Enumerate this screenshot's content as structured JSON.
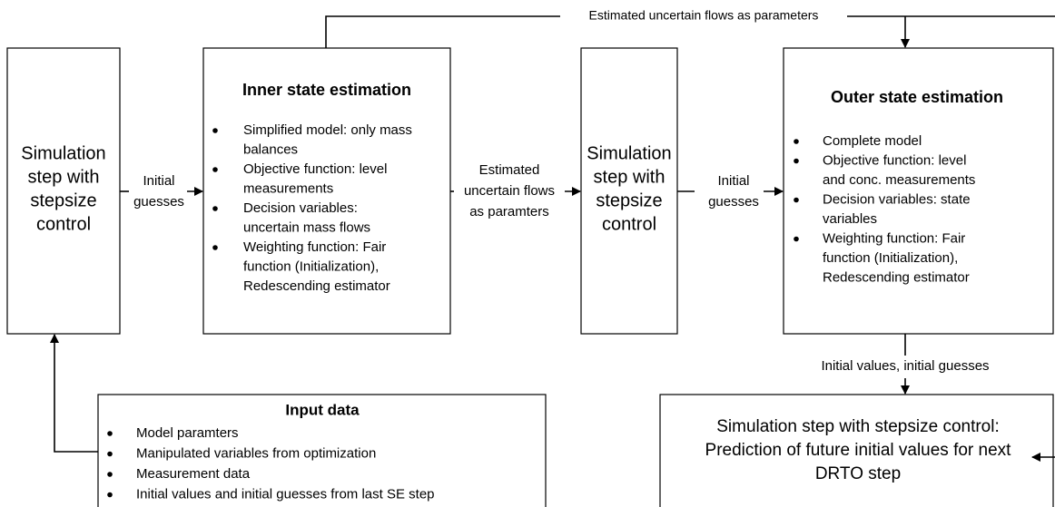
{
  "top_edge_label": "Estimated uncertain flows as parameters",
  "nodes": [
    {
      "lines": [
        "Simulation",
        "step with",
        "stepsize",
        "control"
      ]
    },
    {
      "title": "Inner state estimation",
      "bullets": [
        [
          "Simplified model: only mass",
          "balances"
        ],
        [
          "Objective function: level",
          "measurements"
        ],
        [
          "Decision variables:",
          "uncertain mass flows"
        ],
        [
          "Weighting function: Fair",
          "function (Initialization),",
          "Redescending estimator"
        ]
      ]
    },
    {
      "lines": [
        "Simulation",
        "step with",
        "stepsize",
        "control"
      ]
    },
    {
      "title": "Outer state estimation",
      "bullets": [
        [
          "Complete model"
        ],
        [
          "Objective function: level",
          "and conc. measurements"
        ],
        [
          "Decision variables: state",
          "variables"
        ],
        [
          "Weighting function: Fair",
          "function (Initialization),",
          "Redescending estimator"
        ]
      ]
    },
    {
      "lines": [
        "Simulation step with stepsize control:",
        "Prediction of future initial values for next",
        "DRTO step"
      ]
    },
    {
      "title": "Input data",
      "bullets": [
        [
          "Model paramters"
        ],
        [
          "Manipulated variables from optimization"
        ],
        [
          "Measurement data"
        ],
        [
          "Initial values and initial guesses from last SE step"
        ]
      ]
    }
  ],
  "edge_labels": [
    [
      "Initial",
      "guesses"
    ],
    [
      "Estimated",
      "uncertain flows",
      "as paramters"
    ],
    [
      "Initial",
      "guesses"
    ],
    [
      "Initial values, initial guesses"
    ]
  ]
}
